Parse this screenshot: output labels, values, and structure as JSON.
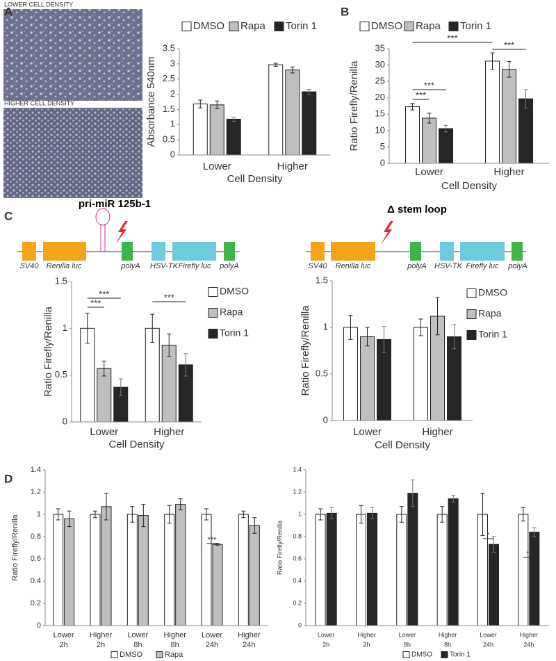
{
  "panel_labels": [
    "A",
    "B",
    "C",
    "D"
  ],
  "images": [
    {
      "caption": "LOWER CELL DENSITY"
    },
    {
      "caption": "HIGHER CELL DENSITY"
    }
  ],
  "constructs": [
    {
      "title": "pri-miR 125b-1",
      "labels": [
        "SV40",
        "Renilla luc",
        "polyA",
        "HSV-TK",
        "Firefly luc",
        "polyA"
      ]
    },
    {
      "title": "Δ stem loop",
      "labels": [
        "SV40",
        "Renilla luc",
        "polyA",
        "HSV-TK",
        "Firefly luc",
        "polyA"
      ]
    }
  ],
  "chart_data": [
    {
      "type": "bar",
      "ylabel": "Absorbance 540nm",
      "xlabel": "Cell Density",
      "categories": [
        "Lower",
        "Higher"
      ],
      "ylim": [
        0,
        3.5
      ],
      "yticks": [
        0,
        0.5,
        1,
        1.5,
        2,
        2.5,
        3,
        3.5
      ],
      "series": [
        {
          "name": "DMSO",
          "color": "#ffffff",
          "values": [
            1.68,
            2.97
          ],
          "errors": [
            0.13,
            0.05
          ]
        },
        {
          "name": "Rapa",
          "color": "#bfbfbf",
          "values": [
            1.65,
            2.8
          ],
          "errors": [
            0.13,
            0.1
          ]
        },
        {
          "name": "Torin 1",
          "color": "#262626",
          "values": [
            1.18,
            2.08
          ],
          "errors": [
            0.07,
            0.08
          ]
        }
      ],
      "annotations": []
    },
    {
      "type": "bar",
      "ylabel": "Ratio Firefly/Renilla",
      "xlabel": "Cell Density",
      "categories": [
        "Lower",
        "Higher"
      ],
      "ylim": [
        0,
        35
      ],
      "yticks": [
        0,
        5,
        10,
        15,
        20,
        25,
        30,
        35
      ],
      "series": [
        {
          "name": "DMSO",
          "color": "#ffffff",
          "values": [
            17.3,
            31.2
          ],
          "errors": [
            1,
            2.5
          ]
        },
        {
          "name": "Rapa",
          "color": "#bfbfbf",
          "values": [
            13.8,
            28.7
          ],
          "errors": [
            1.5,
            2.4
          ]
        },
        {
          "name": "Torin 1",
          "color": "#262626",
          "values": [
            10.6,
            19.7
          ],
          "errors": [
            1,
            2.8
          ]
        }
      ],
      "annotations": [
        {
          "text": "***"
        },
        {
          "text": "***"
        },
        {
          "text": "***"
        },
        {
          "text": "***"
        }
      ]
    },
    {
      "type": "bar",
      "ylabel": "Ratio Firefly/Renilla",
      "xlabel": "Cell Density",
      "categories": [
        "Lower",
        "Higher"
      ],
      "ylim": [
        0,
        1.5
      ],
      "yticks": [
        0,
        0.5,
        1,
        1.5
      ],
      "series": [
        {
          "name": "DMSO",
          "color": "#ffffff",
          "values": [
            1,
            1
          ],
          "errors": [
            0.16,
            0.15
          ]
        },
        {
          "name": "Rapa",
          "color": "#bfbfbf",
          "values": [
            0.57,
            0.82
          ],
          "errors": [
            0.08,
            0.12
          ]
        },
        {
          "name": "Torin 1",
          "color": "#262626",
          "values": [
            0.37,
            0.61
          ],
          "errors": [
            0.09,
            0.12
          ]
        }
      ],
      "annotations": [
        {
          "text": "***"
        },
        {
          "text": "***"
        },
        {
          "text": "***"
        }
      ]
    },
    {
      "type": "bar",
      "ylabel": "Ratio Firefly/Renilla",
      "xlabel": "Cell Density",
      "categories": [
        "Lower",
        "Higher"
      ],
      "ylim": [
        0,
        1.5
      ],
      "yticks": [
        0,
        0.5,
        1,
        1.5
      ],
      "series": [
        {
          "name": "DMSO",
          "color": "#ffffff",
          "values": [
            1,
            1
          ],
          "errors": [
            0.13,
            0.09
          ]
        },
        {
          "name": "Rapa",
          "color": "#bfbfbf",
          "values": [
            0.9,
            1.12
          ],
          "errors": [
            0.1,
            0.2
          ]
        },
        {
          "name": "Torin 1",
          "color": "#262626",
          "values": [
            0.87,
            0.9
          ],
          "errors": [
            0.14,
            0.13
          ]
        }
      ],
      "annotations": []
    },
    {
      "type": "bar",
      "ylabel": "Ratio Firefly/Renilla",
      "categories": [
        [
          "Lower",
          "2h"
        ],
        [
          "Higher",
          "2h"
        ],
        [
          "Lower",
          "8h"
        ],
        [
          "Higher",
          "8h"
        ],
        [
          "Lower",
          "24h"
        ],
        [
          "Higher",
          "24h"
        ]
      ],
      "ylim": [
        0,
        1.4
      ],
      "yticks": [
        0,
        0.2,
        0.4,
        0.6,
        0.8,
        1,
        1.2,
        1.4
      ],
      "series": [
        {
          "name": "DMSO",
          "color": "#ffffff",
          "values": [
            1,
            1,
            1,
            1,
            1,
            1
          ],
          "errors": [
            0.05,
            0.03,
            0.07,
            0.08,
            0.05,
            0.03
          ]
        },
        {
          "name": "Rapa",
          "color": "#bfbfbf",
          "values": [
            0.96,
            1.07,
            0.99,
            1.09,
            0.73,
            0.9
          ],
          "errors": [
            0.07,
            0.12,
            0.1,
            0.05,
            0.01,
            0.07
          ]
        }
      ],
      "annotations": [
        {
          "text": "***"
        }
      ]
    },
    {
      "type": "bar",
      "ylabel": "Ratio Firefly/Renilla",
      "categories": [
        [
          "Lower",
          "2h"
        ],
        [
          "Higher",
          "2h"
        ],
        [
          "Lower",
          "8h"
        ],
        [
          "Higher",
          "8h"
        ],
        [
          "Lower",
          "24h"
        ],
        [
          "Higher",
          "24h"
        ]
      ],
      "ylim": [
        0,
        1.4
      ],
      "yticks": [
        0,
        0.2,
        0.4,
        0.6,
        0.8,
        1,
        1.2,
        1.4
      ],
      "series": [
        {
          "name": "DMSO",
          "color": "#ffffff",
          "values": [
            1,
            1,
            1,
            1,
            1,
            1
          ],
          "errors": [
            0.05,
            0.08,
            0.07,
            0.07,
            0.19,
            0.06
          ]
        },
        {
          "name": "Torin 1",
          "color": "#262626",
          "values": [
            1.01,
            1.01,
            1.19,
            1.14,
            0.73,
            0.84
          ],
          "errors": [
            0.05,
            0.05,
            0.12,
            0.03,
            0.07,
            0.04
          ]
        }
      ],
      "annotations": [
        {
          "text": "*"
        },
        {
          "text": "**"
        }
      ]
    }
  ]
}
